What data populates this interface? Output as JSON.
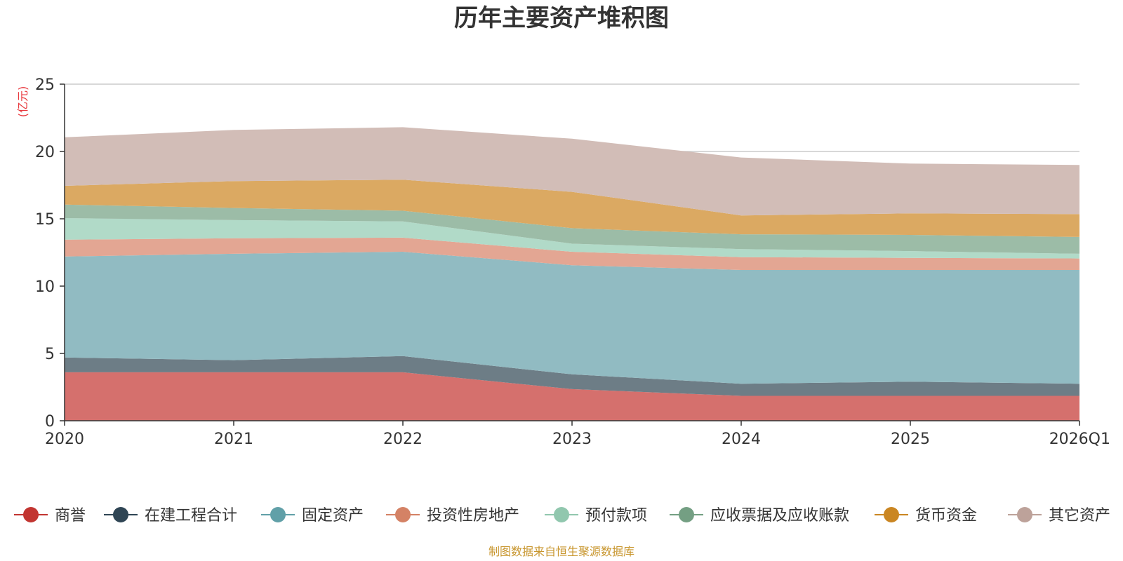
{
  "chart_data": {
    "type": "area",
    "stacked": true,
    "title": "历年主要资产堆积图",
    "ylabel": "(亿元)",
    "xlabel": "",
    "categories": [
      "2020",
      "2021",
      "2022",
      "2023",
      "2024",
      "2025",
      "2026Q1"
    ],
    "ylim": [
      0,
      25
    ],
    "yticks": [
      0,
      5,
      10,
      15,
      20,
      25
    ],
    "grid": true,
    "legend_position": "bottom",
    "series": [
      {
        "name": "商誉",
        "color": "#c23531",
        "fill": "#d5706d",
        "values": [
          3.6,
          3.6,
          3.6,
          2.35,
          1.85,
          1.85,
          1.85
        ]
      },
      {
        "name": "在建工程合计",
        "color": "#2f4554",
        "fill": "#6d7d86",
        "values": [
          1.1,
          0.9,
          1.2,
          1.1,
          0.9,
          1.05,
          0.9
        ]
      },
      {
        "name": "固定资产",
        "color": "#61a0a8",
        "fill": "#91bbc2",
        "values": [
          7.5,
          7.9,
          7.75,
          8.1,
          8.45,
          8.3,
          8.45
        ]
      },
      {
        "name": "投资性房地产",
        "color": "#d48265",
        "fill": "#e3a693",
        "values": [
          1.25,
          1.15,
          1.05,
          1.0,
          0.95,
          0.9,
          0.85
        ]
      },
      {
        "name": "预付款项",
        "color": "#91c7ae",
        "fill": "#b1dac8",
        "values": [
          1.6,
          1.35,
          1.2,
          0.6,
          0.6,
          0.5,
          0.35
        ]
      },
      {
        "name": "应收票据及应收账款",
        "color": "#749f83",
        "fill": "#9cbca7",
        "values": [
          1.0,
          0.9,
          0.8,
          1.15,
          1.1,
          1.2,
          1.25
        ]
      },
      {
        "name": "货币资金",
        "color": "#ca8622",
        "fill": "#dba962",
        "values": [
          1.4,
          2.0,
          2.3,
          2.7,
          1.4,
          1.6,
          1.7
        ]
      },
      {
        "name": "其它资产",
        "color": "#bda29a",
        "fill": "#d2bdb7",
        "values": [
          3.6,
          3.8,
          3.9,
          3.95,
          4.3,
          3.7,
          3.65
        ]
      }
    ],
    "source": "制图数据来自恒生聚源数据库"
  },
  "colors": {
    "axis": "#333333",
    "grid": "#cccccc",
    "ylabel": "#e8383d",
    "source": "#c8962e"
  }
}
